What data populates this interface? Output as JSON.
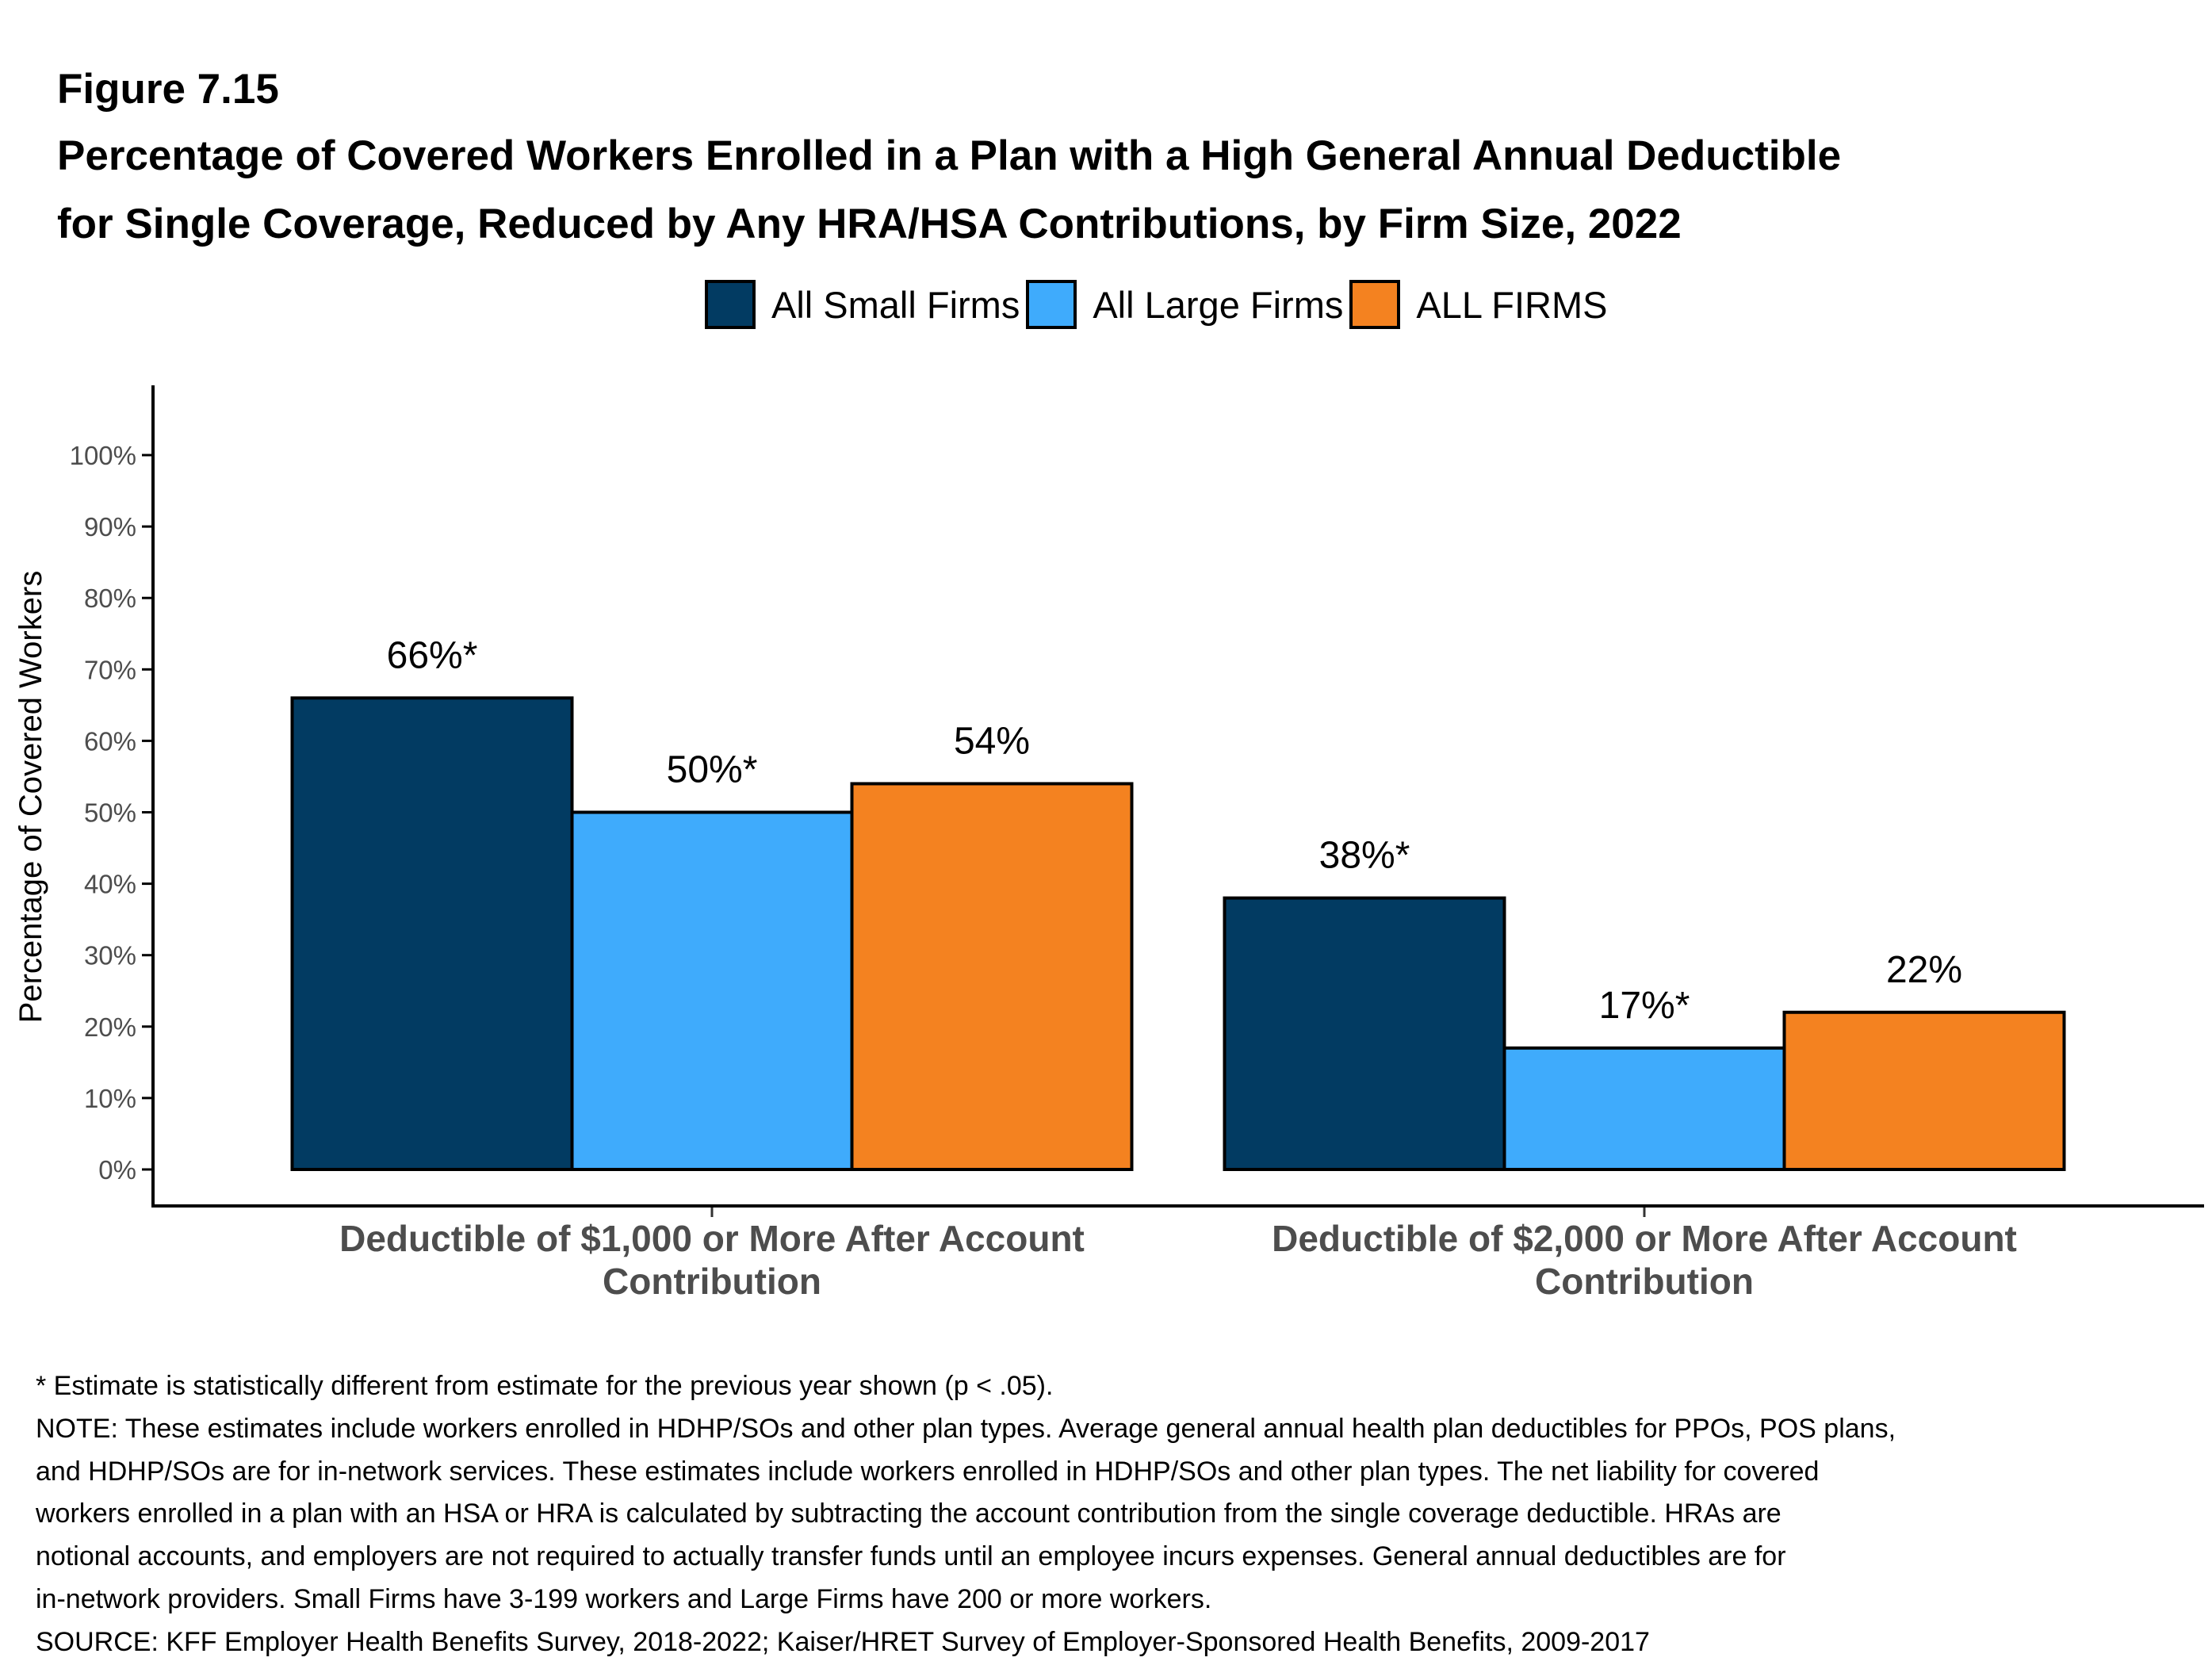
{
  "figure_label": "Figure 7.15",
  "title_lines": [
    "Percentage of Covered Workers Enrolled in a Plan with a High General Annual Deductible",
    "for Single Coverage, Reduced by Any HRA/HSA Contributions, by Firm Size, 2022"
  ],
  "legend": [
    {
      "label": "All Small Firms",
      "color": "#023B62"
    },
    {
      "label": "All Large Firms",
      "color": "#3FABFC"
    },
    {
      "label": "ALL FIRMS",
      "color": "#F48220"
    }
  ],
  "chart_data": {
    "type": "bar",
    "title": "Percentage of Covered Workers Enrolled in a Plan with a High General Annual Deductible for Single Coverage, Reduced by Any HRA/HSA Contributions, by Firm Size, 2022",
    "xlabel": "",
    "ylabel": "Percentage of Covered Workers",
    "ylim": [
      0,
      100
    ],
    "yticks": [
      0,
      10,
      20,
      30,
      40,
      50,
      60,
      70,
      80,
      90,
      100
    ],
    "ytick_labels": [
      "0%",
      "10%",
      "20%",
      "30%",
      "40%",
      "50%",
      "60%",
      "70%",
      "80%",
      "90%",
      "100%"
    ],
    "grid": false,
    "legend_position": "top-center",
    "categories": [
      [
        "Deductible of $1,000 or More After Account",
        "Contribution"
      ],
      [
        "Deductible of $2,000 or More After Account",
        "Contribution"
      ]
    ],
    "series": [
      {
        "name": "All Small Firms",
        "color": "#023B62",
        "values": [
          66,
          38
        ],
        "labels": [
          "66%*",
          "38%*"
        ]
      },
      {
        "name": "All Large Firms",
        "color": "#3FABFC",
        "values": [
          50,
          17
        ],
        "labels": [
          "50%*",
          "17%*"
        ]
      },
      {
        "name": "ALL FIRMS",
        "color": "#F48220",
        "values": [
          54,
          22
        ],
        "labels": [
          "54%",
          "22%"
        ]
      }
    ]
  },
  "notes": [
    "* Estimate is statistically different from estimate for the previous year shown (p < .05).",
    "NOTE: These estimates include workers enrolled in HDHP/SOs and other plan types. Average general annual health plan deductibles for PPOs, POS plans,",
    "and HDHP/SOs are for in-network services. These estimates include workers enrolled in HDHP/SOs and other plan types. The net liability for covered",
    "workers enrolled in a plan with an HSA or HRA is calculated by subtracting the account contribution from the single coverage deductible. HRAs are",
    "notional accounts, and employers are not required to actually transfer funds until an employee incurs expenses. General annual deductibles are for",
    "in-network providers. Small Firms have 3-199 workers and Large Firms have 200 or more workers.",
    "SOURCE: KFF Employer Health Benefits Survey, 2018-2022; Kaiser/HRET Survey of Employer-Sponsored Health Benefits, 2009-2017"
  ]
}
